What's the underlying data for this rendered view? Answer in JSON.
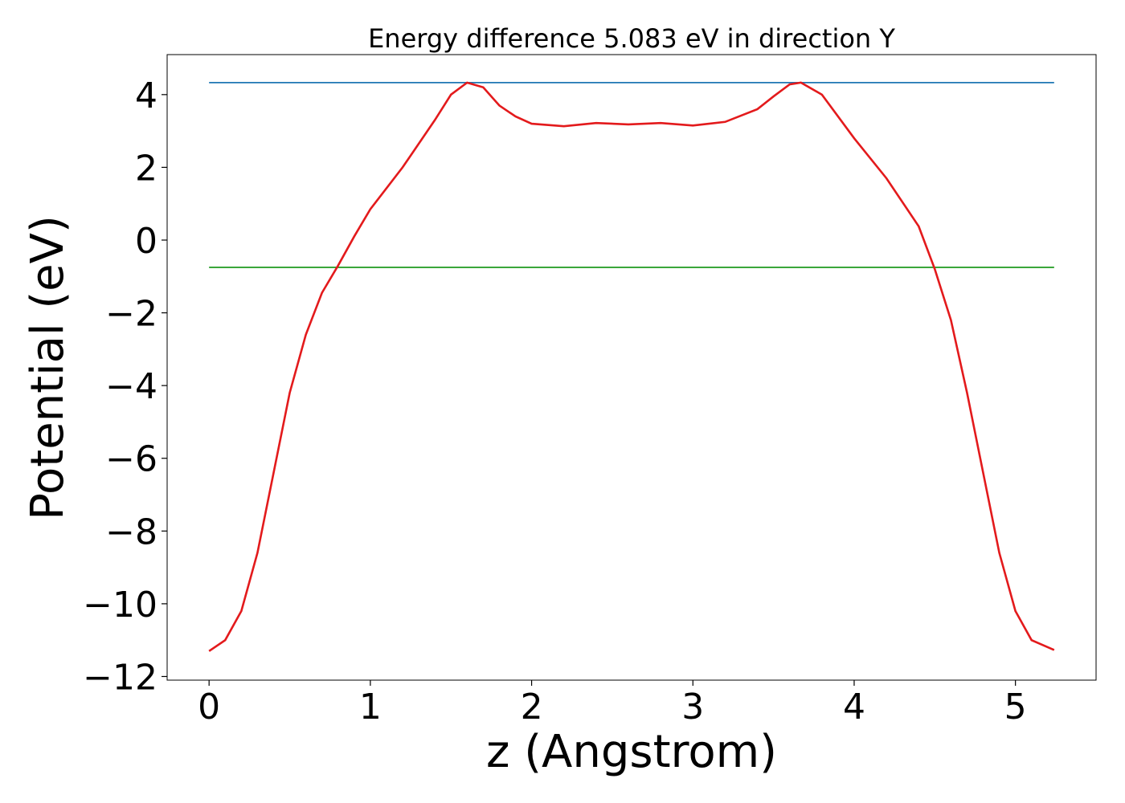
{
  "chart_data": {
    "type": "line",
    "title": "Energy difference 5.083 eV in direction Y",
    "x_label": "z (Angstrom)",
    "y_label": "Potential (eV)",
    "xlim": [
      -0.26,
      5.5
    ],
    "ylim": [
      -12.1,
      5.1
    ],
    "xticks": [
      0,
      1,
      2,
      3,
      4,
      5
    ],
    "yticks": [
      {
        "value": -12,
        "label": "−12"
      },
      {
        "value": -10,
        "label": "−10"
      },
      {
        "value": -8,
        "label": "−8"
      },
      {
        "value": -6,
        "label": "−6"
      },
      {
        "value": -4,
        "label": "−4"
      },
      {
        "value": -2,
        "label": "−2"
      },
      0,
      2,
      4
    ],
    "grid": false,
    "series": [
      {
        "color": "#1f77b4",
        "x": [
          0,
          5.24
        ],
        "values": [
          4.33,
          4.33
        ]
      },
      {
        "color": "#2ca02c",
        "x": [
          0,
          5.24
        ],
        "values": [
          -0.75,
          -0.75
        ]
      },
      {
        "color": "#e31a1c",
        "x": [
          0,
          0.1,
          0.2,
          0.3,
          0.4,
          0.5,
          0.6,
          0.7,
          0.8,
          0.9,
          1.0,
          1.2,
          1.4,
          1.5,
          1.6,
          1.7,
          1.8,
          1.9,
          2.0,
          2.2,
          2.4,
          2.6,
          2.8,
          3.0,
          3.2,
          3.4,
          3.5,
          3.6,
          3.67,
          3.8,
          4.0,
          4.2,
          4.4,
          4.5,
          4.6,
          4.7,
          4.8,
          4.9,
          5.0,
          5.1,
          5.24
        ],
        "values": [
          -11.3,
          -11.0,
          -10.2,
          -8.6,
          -6.4,
          -4.2,
          -2.6,
          -1.45,
          -0.7,
          0.1,
          0.85,
          2.0,
          3.3,
          4.0,
          4.33,
          4.2,
          3.7,
          3.4,
          3.2,
          3.13,
          3.22,
          3.18,
          3.22,
          3.15,
          3.25,
          3.6,
          3.95,
          4.28,
          4.33,
          4.0,
          2.8,
          1.7,
          0.38,
          -0.8,
          -2.2,
          -4.2,
          -6.4,
          -8.6,
          -10.2,
          -11.0,
          -11.27
        ]
      }
    ]
  }
}
